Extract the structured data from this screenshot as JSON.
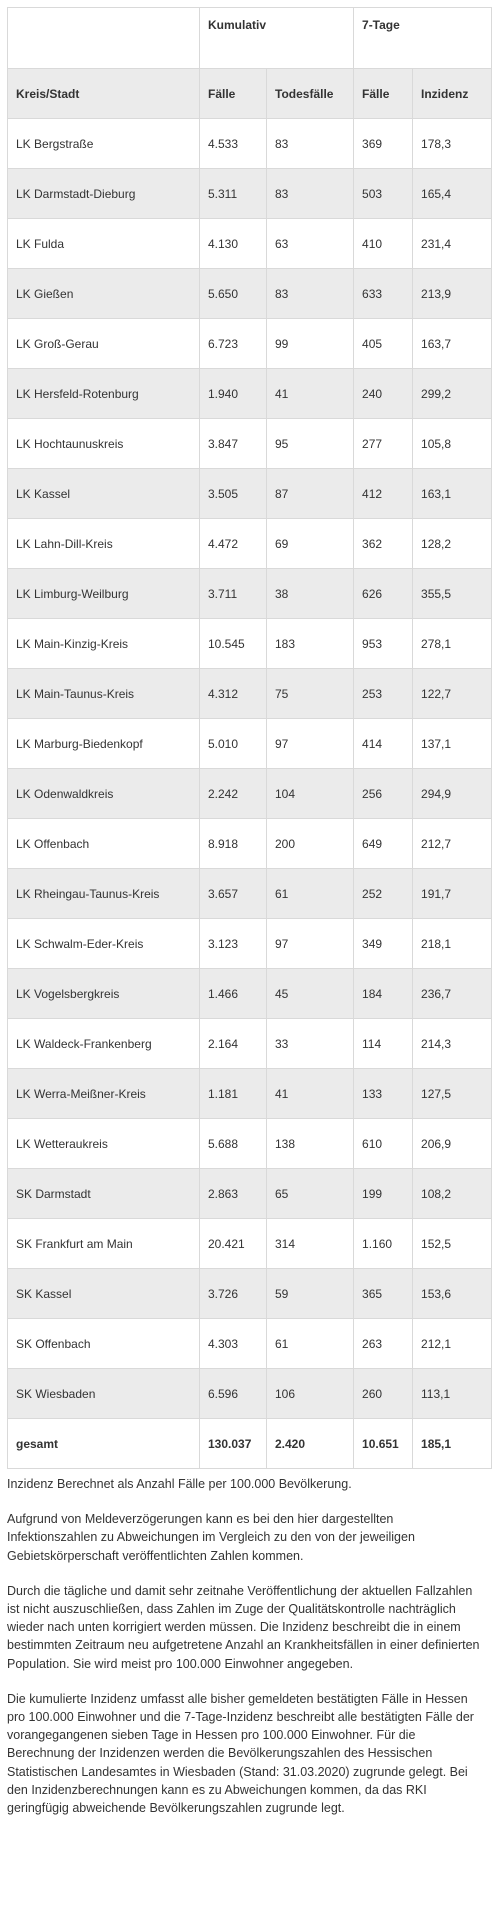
{
  "table": {
    "group_headers": [
      "",
      "Kumulativ",
      "7-Tage"
    ],
    "columns": [
      "Kreis/Stadt",
      "Fälle",
      "Todesfälle",
      "Fälle",
      "Inzidenz"
    ],
    "rows": [
      [
        "LK Bergstraße",
        "4.533",
        "83",
        "369",
        "178,3"
      ],
      [
        "LK Darmstadt-Dieburg",
        "5.311",
        "83",
        "503",
        "165,4"
      ],
      [
        "LK Fulda",
        "4.130",
        "63",
        "410",
        "231,4"
      ],
      [
        "LK Gießen",
        "5.650",
        "83",
        "633",
        "213,9"
      ],
      [
        "LK Groß-Gerau",
        "6.723",
        "99",
        "405",
        "163,7"
      ],
      [
        "LK Hersfeld-Rotenburg",
        "1.940",
        "41",
        "240",
        "299,2"
      ],
      [
        "LK Hochtaunuskreis",
        "3.847",
        "95",
        "277",
        "105,8"
      ],
      [
        "LK Kassel",
        "3.505",
        "87",
        "412",
        "163,1"
      ],
      [
        "LK Lahn-Dill-Kreis",
        "4.472",
        "69",
        "362",
        "128,2"
      ],
      [
        "LK Limburg-Weilburg",
        "3.711",
        "38",
        "626",
        "355,5"
      ],
      [
        "LK Main-Kinzig-Kreis",
        "10.545",
        "183",
        "953",
        "278,1"
      ],
      [
        "LK Main-Taunus-Kreis",
        "4.312",
        "75",
        "253",
        "122,7"
      ],
      [
        "LK Marburg-Biedenkopf",
        "5.010",
        "97",
        "414",
        "137,1"
      ],
      [
        "LK Odenwaldkreis",
        "2.242",
        "104",
        "256",
        "294,9"
      ],
      [
        "LK Offenbach",
        "8.918",
        "200",
        "649",
        "212,7"
      ],
      [
        "LK Rheingau-Taunus-Kreis",
        "3.657",
        "61",
        "252",
        "191,7"
      ],
      [
        "LK Schwalm-Eder-Kreis",
        "3.123",
        "97",
        "349",
        "218,1"
      ],
      [
        "LK Vogelsbergkreis",
        "1.466",
        "45",
        "184",
        "236,7"
      ],
      [
        "LK Waldeck-Frankenberg",
        "2.164",
        "33",
        "114",
        "214,3"
      ],
      [
        "LK Werra-Meißner-Kreis",
        "1.181",
        "41",
        "133",
        "127,5"
      ],
      [
        "LK Wetteraukreis",
        "5.688",
        "138",
        "610",
        "206,9"
      ],
      [
        "SK Darmstadt",
        "2.863",
        "65",
        "199",
        "108,2"
      ],
      [
        "SK Frankfurt am Main",
        "20.421",
        "314",
        "1.160",
        "152,5"
      ],
      [
        "SK Kassel",
        "3.726",
        "59",
        "365",
        "153,6"
      ],
      [
        "SK Offenbach",
        "4.303",
        "61",
        "263",
        "212,1"
      ],
      [
        "SK Wiesbaden",
        "6.596",
        "106",
        "260",
        "113,1"
      ]
    ],
    "total": [
      "gesamt",
      "130.037",
      "2.420",
      "10.651",
      "185,1"
    ]
  },
  "notes": [
    "Inzidenz Berechnet als Anzahl Fälle per 100.000 Bevölkerung.",
    "Aufgrund von Meldeverzögerungen kann es bei den hier dargestellten Infektionszahlen zu Abweichungen im Vergleich zu den von der jeweiligen Gebietskörperschaft veröffentlichten Zahlen kommen.",
    "Durch die tägliche und damit sehr zeitnahe Veröffentlichung der aktuellen Fallzahlen ist nicht auszuschließen, dass Zahlen im Zuge der Qualitätskontrolle nachträglich wieder nach unten korrigiert werden müssen. Die Inzidenz beschreibt die in einem bestimmten Zeitraum neu aufgetretene Anzahl an Krankheitsfällen in einer definierten Population. Sie wird meist pro 100.000 Einwohner angegeben.",
    "Die kumulierte Inzidenz umfasst alle bisher gemeldeten bestätigten Fälle in Hessen pro 100.000 Einwohner und die 7-Tage-Inzidenz beschreibt alle bestätigten Fälle der vorangegangenen sieben Tage in Hessen pro 100.000 Einwohner. Für die Berechnung der Inzidenzen werden die Bevölkerungszahlen des Hessischen Statistischen Landesamtes in Wiesbaden (Stand: 31.03.2020) zugrunde gelegt. Bei den Inzidenzberechnungen kann es zu Abweichungen kommen, da das RKI geringfügig abweichende Bevölkerungszahlen zugrunde legt."
  ]
}
